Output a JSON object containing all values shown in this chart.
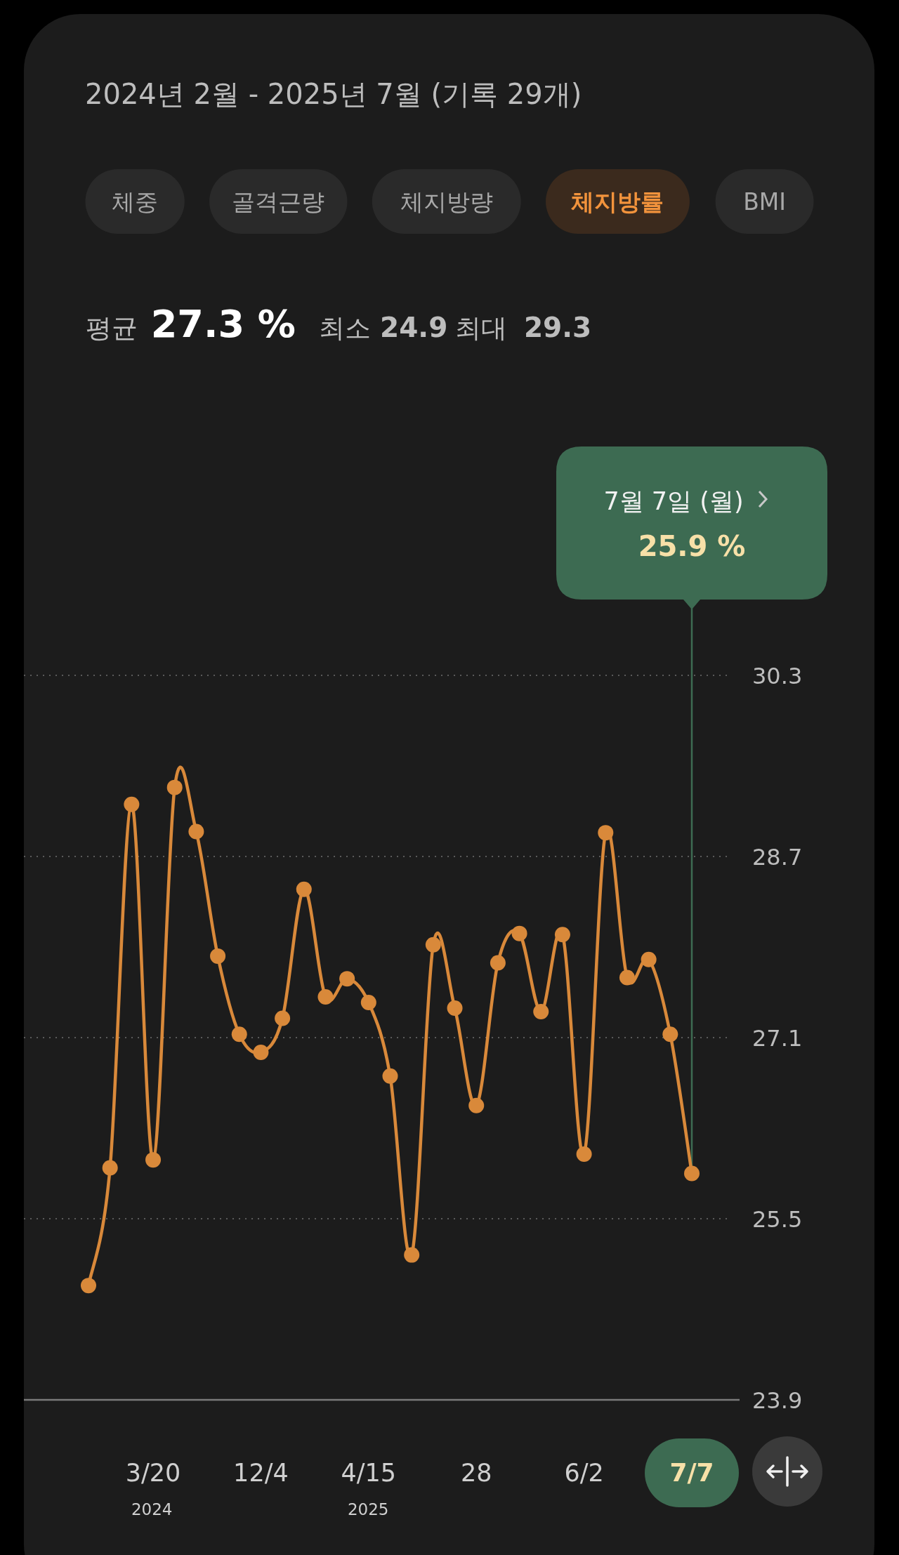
{
  "chart_data": {
    "type": "line",
    "title": "2024년 2월 - 2025년 7월 (기록 29개)",
    "categories": [
      null,
      null,
      null,
      "3/20",
      null,
      null,
      null,
      null,
      "12/4",
      null,
      null,
      null,
      null,
      "4/15",
      null,
      null,
      null,
      null,
      "28",
      null,
      null,
      null,
      null,
      "6/2",
      null,
      null,
      null,
      null,
      "7/7"
    ],
    "series": [
      {
        "color": "#d9893a",
        "values": [
          24.91,
          25.95,
          29.16,
          26.02,
          29.31,
          28.92,
          27.82,
          27.13,
          26.97,
          27.27,
          28.41,
          27.46,
          27.62,
          27.41,
          26.76,
          25.18,
          27.92,
          27.36,
          26.5,
          27.76,
          28.02,
          27.33,
          28.01,
          26.07,
          28.91,
          27.63,
          27.79,
          27.13,
          25.9
        ]
      }
    ],
    "ylim": [
      23.9,
      30.3
    ],
    "yticks": [
      23.9,
      25.5,
      27.1,
      28.7,
      30.3
    ],
    "grid": "y",
    "marker": "circle",
    "annotations": [
      "체중",
      "골격근량",
      "체지방량",
      "체지방률",
      "BMI",
      "평균",
      "27.3 %",
      "최소",
      "24.9",
      "최대",
      "29.3",
      "2024",
      "2025",
      "7월 7일 (월)",
      "25.9 %"
    ]
  }
}
